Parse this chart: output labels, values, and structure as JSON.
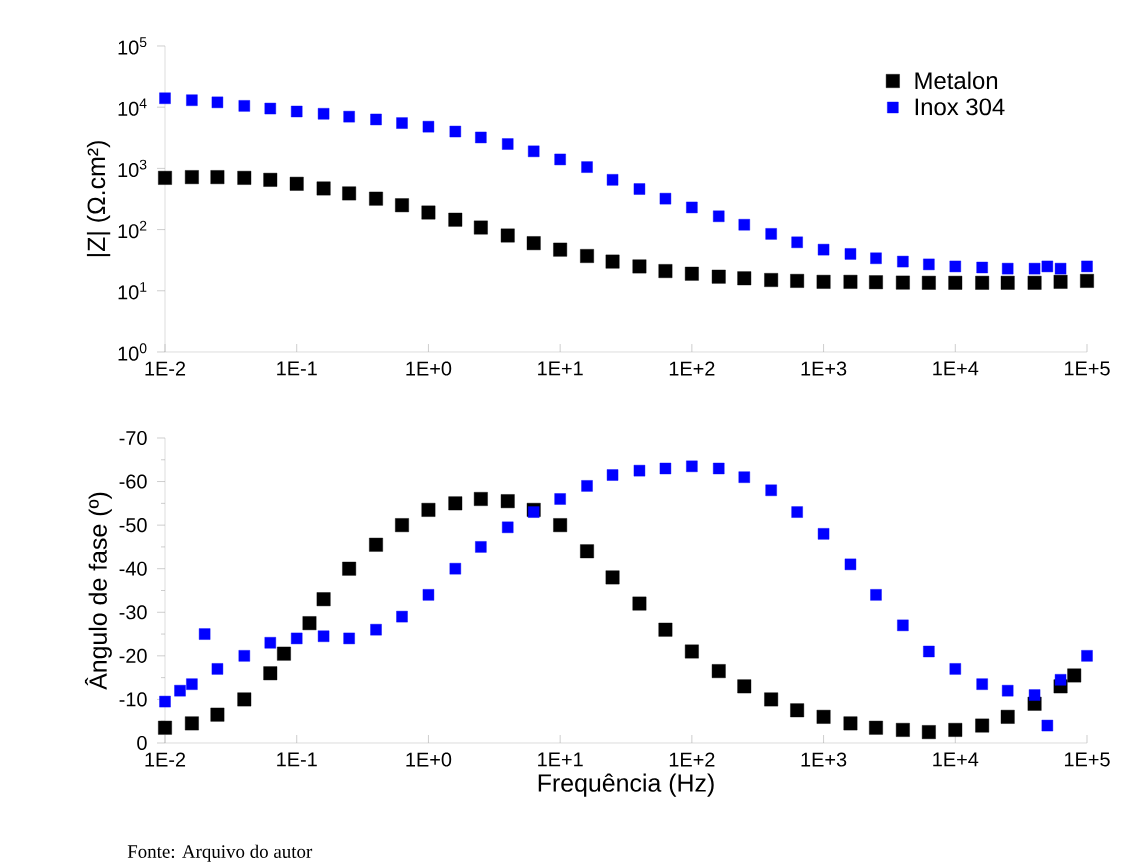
{
  "chart_data": [
    {
      "type": "scatter",
      "ylabel": "|Z| (Ω.cm²)",
      "log": "xy",
      "marker": "square",
      "legend": "top right",
      "xlim": [
        0.01,
        100000
      ],
      "xticks": [
        {
          "value": 0.01,
          "label": "1E-2"
        },
        {
          "value": 0.1,
          "label": "1E-1"
        },
        {
          "value": 1,
          "label": "1E+0"
        },
        {
          "value": 10,
          "label": "1E+1"
        },
        {
          "value": 100,
          "label": "1E+2"
        },
        {
          "value": 1000,
          "label": "1E+3"
        },
        {
          "value": 10000,
          "label": "1E+4"
        },
        {
          "value": 100000,
          "label": "1E+5"
        }
      ],
      "ylim": [
        1,
        100000
      ],
      "yticks": [
        {
          "value": 1,
          "label": "10$^{0}$"
        },
        {
          "value": 10,
          "label": "10$^{1}$"
        },
        {
          "value": 100,
          "label": "10$^{2}$"
        },
        {
          "value": 1000,
          "label": "10$^{3}$"
        },
        {
          "value": 10000,
          "label": "10$^{4}$"
        },
        {
          "value": 100000,
          "label": "10$^{5}$"
        }
      ],
      "series": [
        {
          "name": "Metalon",
          "color": "#000000",
          "x": [
            0.01,
            0.016,
            0.025,
            0.04,
            0.063,
            0.1,
            0.16,
            0.25,
            0.4,
            0.63,
            1,
            1.6,
            2.5,
            4,
            6.3,
            10,
            16,
            25,
            40,
            63,
            100,
            160,
            250,
            400,
            630,
            1000,
            1600,
            2500,
            4000,
            6300,
            10000,
            16000,
            25000,
            40000,
            63000,
            100000
          ],
          "values": [
            700,
            720,
            720,
            700,
            650,
            560,
            470,
            390,
            320,
            250,
            190,
            145,
            108,
            80,
            60,
            47,
            37,
            30,
            25,
            21,
            19,
            17,
            16,
            15,
            14.5,
            14,
            14,
            13.8,
            13.6,
            13.5,
            13.5,
            13.5,
            13.5,
            13.5,
            14,
            14.5
          ]
        },
        {
          "name": "Inox 304",
          "color": "#0000ff",
          "x": [
            0.01,
            0.016,
            0.025,
            0.04,
            0.063,
            0.1,
            0.16,
            0.25,
            0.4,
            0.63,
            1,
            1.6,
            2.5,
            4,
            6.3,
            10,
            16,
            25,
            40,
            63,
            100,
            160,
            250,
            400,
            630,
            1000,
            1600,
            2500,
            4000,
            6300,
            10000,
            16000,
            25000,
            40000,
            50000,
            63000,
            100000
          ],
          "values": [
            14000,
            13000,
            12000,
            10500,
            9500,
            8500,
            7800,
            7000,
            6300,
            5500,
            4800,
            4000,
            3200,
            2500,
            1900,
            1400,
            1050,
            650,
            460,
            320,
            230,
            165,
            120,
            85,
            62,
            47,
            40,
            34,
            30,
            27,
            25,
            24,
            23,
            23,
            25,
            23,
            25
          ]
        }
      ]
    },
    {
      "type": "scatter",
      "xlabel": "Frequência (Hz)",
      "ylabel": "Ângulo de fase (º)",
      "log": "x",
      "marker": "square",
      "xlim": [
        0.01,
        100000
      ],
      "xticks": [
        {
          "value": 0.01,
          "label": "1E-2"
        },
        {
          "value": 0.1,
          "label": "1E-1"
        },
        {
          "value": 1,
          "label": "1E+0"
        },
        {
          "value": 10,
          "label": "1E+1"
        },
        {
          "value": 100,
          "label": "1E+2"
        },
        {
          "value": 1000,
          "label": "1E+3"
        },
        {
          "value": 10000,
          "label": "1E+4"
        },
        {
          "value": 100000,
          "label": "1E+5"
        }
      ],
      "ylim": [
        0,
        -70
      ],
      "yticks": [
        0,
        -10,
        -20,
        -30,
        -40,
        -50,
        -60,
        -70
      ],
      "annotations": [
        "Fonte: Arquivo do autor"
      ],
      "series": [
        {
          "color": "#000000",
          "x": [
            0.01,
            0.016,
            0.025,
            0.04,
            0.063,
            0.08,
            0.125,
            0.16,
            0.25,
            0.4,
            0.63,
            1,
            1.6,
            2.5,
            4,
            6.3,
            10,
            16,
            25,
            40,
            63,
            100,
            160,
            250,
            400,
            630,
            1000,
            1600,
            2500,
            4000,
            6300,
            10000,
            16000,
            25000,
            40000,
            63000,
            80000
          ],
          "values": [
            -3.5,
            -4.5,
            -6.5,
            -10,
            -16,
            -20.5,
            -27.5,
            -33,
            -40,
            -45.5,
            -50,
            -53.5,
            -55,
            -56,
            -55.5,
            -53.5,
            -50,
            -44,
            -38,
            -32,
            -26,
            -21,
            -16.5,
            -13,
            -10,
            -7.5,
            -6,
            -4.5,
            -3.5,
            -3,
            -2.5,
            -3,
            -4,
            -6,
            -9,
            -13,
            -15.5
          ]
        },
        {
          "color": "#0000ff",
          "x": [
            0.01,
            0.013,
            0.016,
            0.02,
            0.025,
            0.04,
            0.063,
            0.1,
            0.16,
            0.25,
            0.4,
            0.63,
            1,
            1.6,
            2.5,
            4,
            6.3,
            10,
            16,
            25,
            40,
            63,
            100,
            160,
            250,
            400,
            630,
            1000,
            1600,
            2500,
            4000,
            6300,
            10000,
            16000,
            25000,
            40000,
            50000,
            63000,
            100000
          ],
          "values": [
            -9.5,
            -12,
            -13.5,
            -25,
            -17,
            -20,
            -23,
            -24,
            -24.5,
            -24,
            -26,
            -29,
            -34,
            -40,
            -45,
            -49.5,
            -53,
            -56,
            -59,
            -61.5,
            -62.5,
            -63,
            -63.5,
            -63,
            -61,
            -58,
            -53,
            -48,
            -41,
            -34,
            -27,
            -21,
            -17,
            -13.5,
            -12,
            -11,
            -4,
            -14.5,
            -20
          ]
        }
      ]
    }
  ]
}
